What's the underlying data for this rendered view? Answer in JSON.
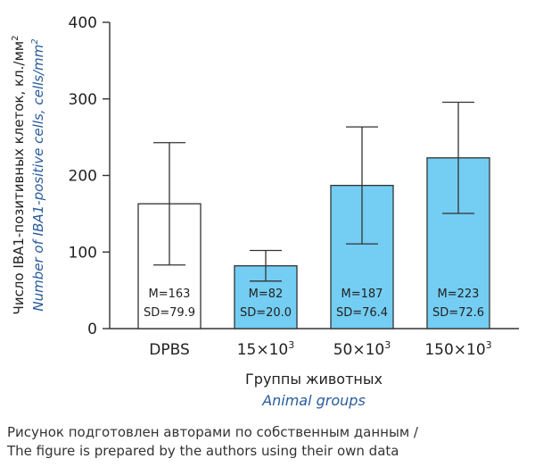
{
  "chart_data": {
    "type": "bar",
    "categories": [
      "DPBS",
      "15×10",
      "50×10",
      "150×10"
    ],
    "category_superscripts": [
      "",
      "3",
      "3",
      "3"
    ],
    "values": [
      163,
      82,
      187,
      223
    ],
    "sd": [
      79.9,
      20.0,
      76.4,
      72.6
    ],
    "bar_labels_mean": [
      "M=163",
      "M=82",
      "M=187",
      "M=223"
    ],
    "bar_labels_sd": [
      "SD=79.9",
      "SD=20.0",
      "SD=76.4",
      "SD=72.6"
    ],
    "bar_colors": [
      "#ffffff",
      "#74cdf2",
      "#74cdf2",
      "#74cdf2"
    ],
    "ylim": [
      0,
      400
    ],
    "yticks": [
      "0",
      "100",
      "200",
      "300",
      "400"
    ],
    "ylabel_ru": "Число IBA1-позитивных клеток, кл./мм",
    "ylabel_ru_sup": "2",
    "ylabel_en": "Number of IBA1-positive cells, cells/mm",
    "ylabel_en_sup": "2",
    "xlabel_ru": "Группы животных",
    "xlabel_en": "Animal groups",
    "accent_color": "#2a5c9a"
  },
  "caption": {
    "line1": "Рисунок подготовлен авторами по собственным данным /",
    "line2": "The figure is prepared by the authors using their own data"
  }
}
